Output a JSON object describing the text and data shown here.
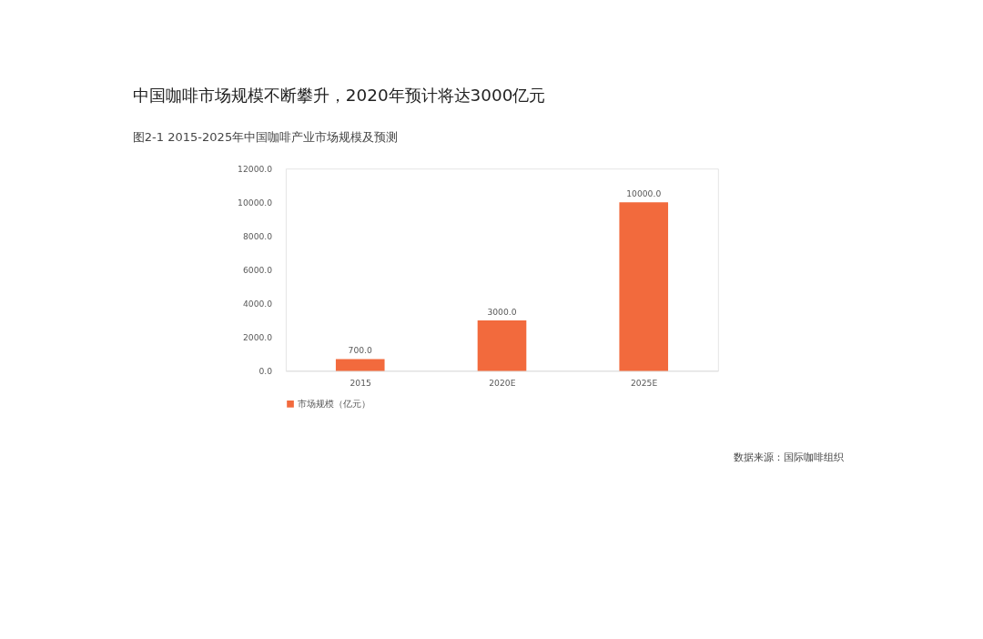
{
  "chart_data": {
    "type": "bar",
    "title": "中国咖啡市场规模不断攀升，2020年预计将达3000亿元",
    "subtitle": "图2-1 2015-2025年中国咖啡产业市场规模及预测",
    "categories": [
      "2015",
      "2020E",
      "2025E"
    ],
    "series": [
      {
        "name": "市场规模（亿元）",
        "color": "#f26a3d",
        "values": [
          700,
          3000,
          10000
        ],
        "value_labels": [
          "700.0",
          "3000.0",
          "10000.0"
        ]
      }
    ],
    "ylim": [
      0,
      12000
    ],
    "yticks": [
      {
        "value": 0,
        "label": "0.0"
      },
      {
        "value": 2000,
        "label": "2000.0"
      },
      {
        "value": 4000,
        "label": "4000.0"
      },
      {
        "value": 6000,
        "label": "6000.0"
      },
      {
        "value": 8000,
        "label": "8000.0"
      },
      {
        "value": 10000,
        "label": "10000.0"
      },
      {
        "value": 12000,
        "label": "12000.0"
      }
    ],
    "grid": false,
    "legend": "bottom",
    "annotations": [
      "数据来源：国际咖啡组织"
    ]
  }
}
